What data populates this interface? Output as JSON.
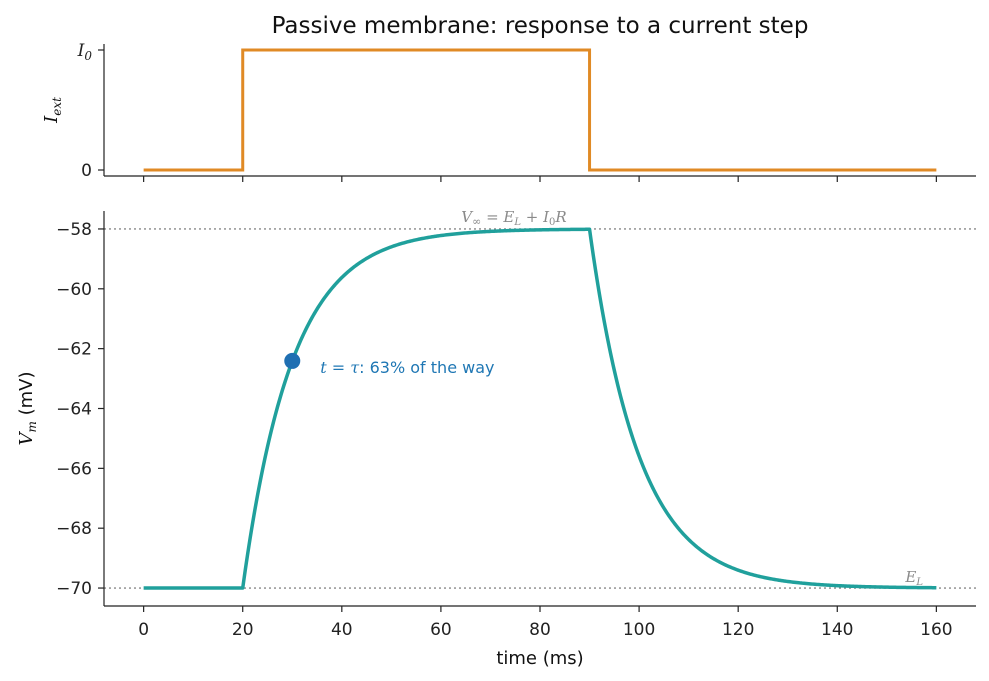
{
  "chart_data": [
    {
      "type": "line",
      "title": "Passive membrane: response to a current step",
      "ylabel": "I_ext",
      "xlim": [
        -8,
        168
      ],
      "ylim": [
        -0.05,
        1.05
      ],
      "yticks": [
        {
          "value": 0,
          "label": "0"
        },
        {
          "value": 1,
          "label": "I_0"
        }
      ],
      "xticks": [
        0,
        20,
        40,
        60,
        80,
        100,
        120,
        140,
        160
      ],
      "series": [
        {
          "color": "#e08a25",
          "x": [
            0,
            20,
            20,
            90,
            90,
            160
          ],
          "y": [
            0,
            0,
            1,
            1,
            0,
            0
          ]
        }
      ]
    },
    {
      "type": "line",
      "xlabel": "time (ms)",
      "ylabel": "V_m (mV)",
      "xlim": [
        -8,
        168
      ],
      "ylim": [
        -70.6,
        -57.4
      ],
      "xticks": [
        0,
        20,
        40,
        60,
        80,
        100,
        120,
        140,
        160
      ],
      "yticks": [
        -70,
        -68,
        -66,
        -64,
        -62,
        -60,
        -58
      ],
      "series": [
        {
          "color": "#20a09c",
          "model": {
            "E_L": -70,
            "V_inf": -58,
            "t_on": 20,
            "t_off": 90,
            "tau": 10,
            "t_end": 160
          }
        }
      ],
      "reference_lines": [
        {
          "y": -58,
          "label": "V∞ = E_L + I_0R"
        },
        {
          "y": -70,
          "label": "E_L"
        }
      ],
      "marker": {
        "x": 30,
        "y": -62.41,
        "color": "#1f6fb2"
      },
      "annotation": {
        "prefix": "t = τ",
        "text": ": 63% of the way"
      }
    }
  ]
}
